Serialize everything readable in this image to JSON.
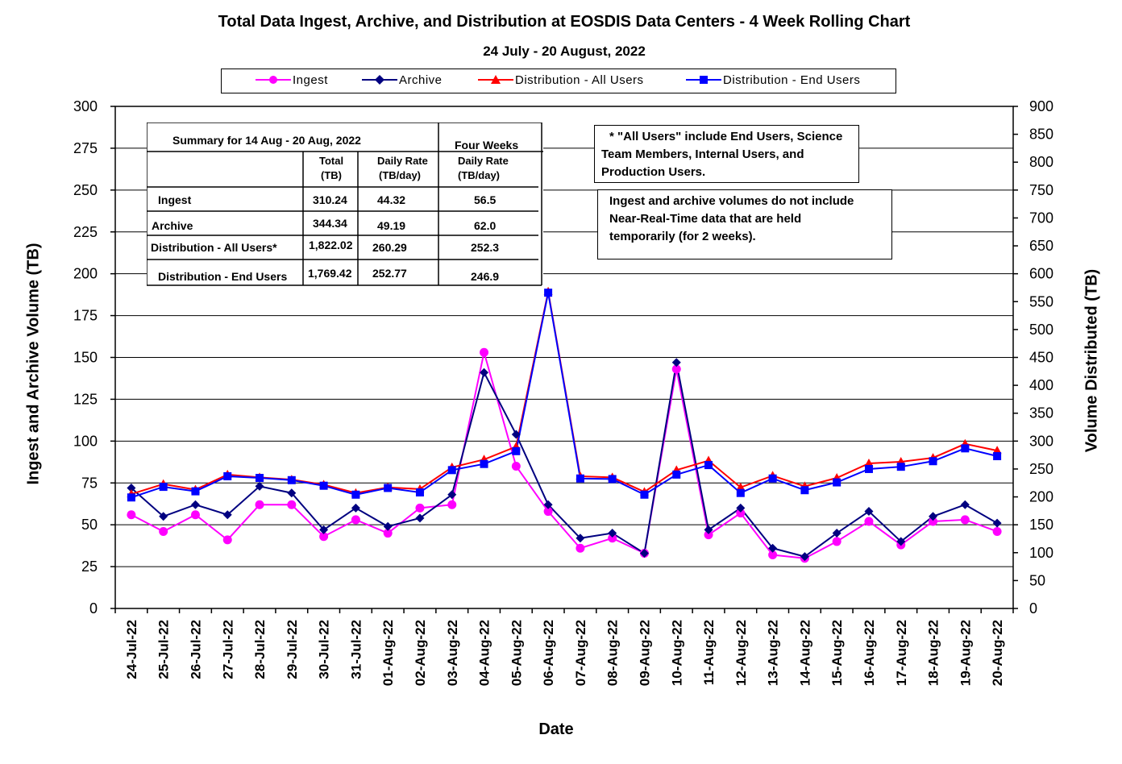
{
  "chart_data": {
    "type": "line",
    "title": "Total Data Ingest, Archive, and  Distribution at EOSDIS Data Centers - 4 Week Rolling Chart",
    "subtitle": "24 July  - 20 August,  2022",
    "xlabel": "Date",
    "ylabel_left": "Ingest and Archive Volume (TB)",
    "ylabel_right": "Volume Distributed (TB)",
    "ylim_left": [
      0,
      300
    ],
    "ylim_right": [
      0,
      900
    ],
    "yticks_left": [
      "0",
      "25",
      "50",
      "75",
      "100",
      "125",
      "150",
      "175",
      "200",
      "225",
      "250",
      "275",
      "300"
    ],
    "yticks_right": [
      "0",
      "50",
      "100",
      "150",
      "200",
      "250",
      "300",
      "350",
      "400",
      "450",
      "500",
      "550",
      "600",
      "650",
      "700",
      "750",
      "800",
      "850",
      "900"
    ],
    "grid": true,
    "legend_position": "top",
    "categories": [
      "24-Jul-22",
      "25-Jul-22",
      "26-Jul-22",
      "27-Jul-22",
      "28-Jul-22",
      "29-Jul-22",
      "30-Jul-22",
      "31-Jul-22",
      "01-Aug-22",
      "02-Aug-22",
      "03-Aug-22",
      "04-Aug-22",
      "05-Aug-22",
      "06-Aug-22",
      "07-Aug-22",
      "08-Aug-22",
      "09-Aug-22",
      "10-Aug-22",
      "11-Aug-22",
      "12-Aug-22",
      "13-Aug-22",
      "14-Aug-22",
      "15-Aug-22",
      "16-Aug-22",
      "17-Aug-22",
      "18-Aug-22",
      "19-Aug-22",
      "20-Aug-22"
    ],
    "series": [
      {
        "name": "Ingest",
        "axis": "left",
        "color": "#ff00ff",
        "marker": "circle",
        "values": [
          56,
          46,
          56,
          41,
          62,
          62,
          43,
          53,
          45,
          60,
          62,
          153,
          85,
          58,
          36,
          42,
          33,
          143,
          44,
          57,
          32,
          30,
          40,
          52,
          38,
          52,
          53,
          46
        ]
      },
      {
        "name": "Archive",
        "axis": "left",
        "color": "#000080",
        "marker": "diamond",
        "values": [
          72,
          55,
          62,
          56,
          73,
          69,
          47,
          60,
          49,
          54,
          68,
          141,
          104,
          62,
          42,
          45,
          33,
          147,
          47,
          60,
          36,
          31,
          45,
          58,
          40,
          55,
          62,
          51
        ]
      },
      {
        "name": "Distribution - All Users",
        "axis": "right",
        "color": "#ff0000",
        "marker": "triangle",
        "values": [
          205,
          223,
          213,
          240,
          235,
          231,
          222,
          207,
          217,
          214,
          253,
          267,
          290,
          568,
          237,
          235,
          209,
          248,
          265,
          217,
          238,
          219,
          234,
          260,
          263,
          270,
          295,
          283
        ]
      },
      {
        "name": "Distribution - End Users",
        "axis": "right",
        "color": "#0000ff",
        "marker": "square",
        "values": [
          199,
          218,
          210,
          237,
          234,
          230,
          220,
          204,
          216,
          208,
          248,
          259,
          282,
          566,
          233,
          232,
          204,
          240,
          257,
          207,
          233,
          212,
          226,
          250,
          254,
          264,
          287,
          273
        ]
      }
    ]
  },
  "legend": [
    "Ingest",
    "Archive",
    "Distribution - All Users",
    "Distribution - End Users"
  ],
  "summary": {
    "title": "Summary  for  14  Aug   -  20  Aug,  2022",
    "four_weeks": "Four Weeks",
    "col_total_1": "Total",
    "col_total_2": "(TB)",
    "col_rate_1": "Daily Rate",
    "col_rate_2": "(TB/day)",
    "col_fw_1": "Daily Rate",
    "col_fw_2": "(TB/day)",
    "rows": [
      {
        "label": "Ingest",
        "total": "310.24",
        "rate": "44.32",
        "four_weeks": "56.5"
      },
      {
        "label": "Archive",
        "total": "344.34",
        "rate": "49.19",
        "four_weeks": "62.0"
      },
      {
        "label": "Distribution - All Users*",
        "total": "1,822.02",
        "rate": "260.29",
        "four_weeks": "252.3"
      },
      {
        "label": "Distribution - End Users",
        "total": "1,769.42",
        "rate": "252.77",
        "four_weeks": "246.9"
      }
    ]
  },
  "notes": {
    "all_users": [
      "* \"All Users\" include End Users, Science",
      "Team Members,  Internal Users, and",
      "Production Users."
    ],
    "nrt": [
      "Ingest and archive volumes do not include",
      "Near-Real-Time data that are held",
      "temporarily (for 2 weeks)."
    ]
  }
}
